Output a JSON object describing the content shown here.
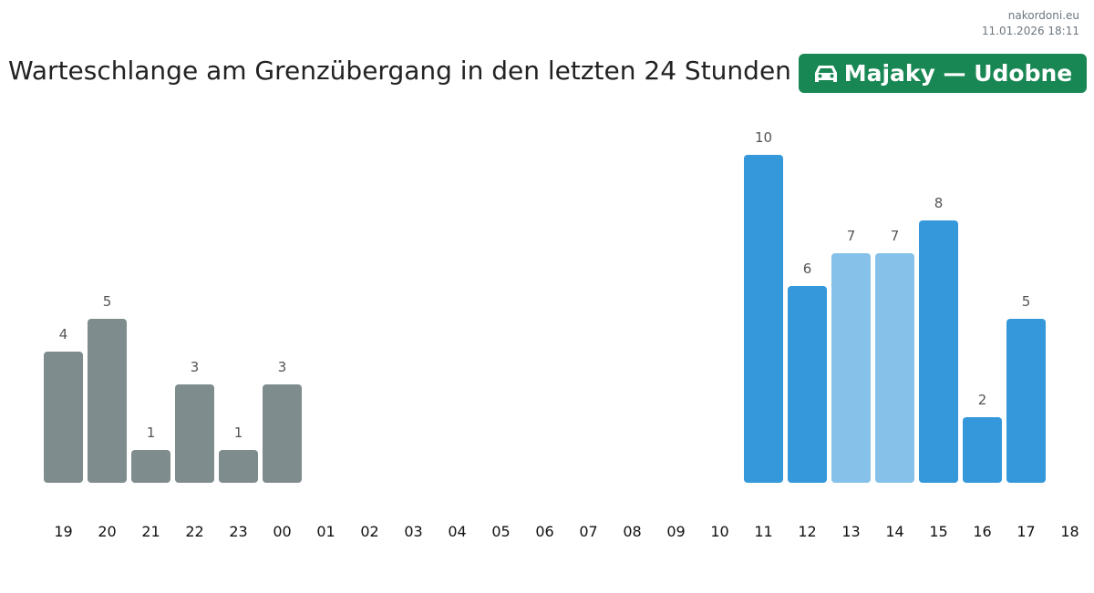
{
  "meta": {
    "site": "nakordoni.eu",
    "timestamp": "11.01.2026 18:11"
  },
  "header": {
    "title": "Warteschlange am Grenzübergang in den letzten 24 Stunden",
    "badge": "Majaky — Udobne",
    "badge_icon": "car-icon",
    "badge_color": "#198754"
  },
  "chart_data": {
    "type": "bar",
    "title": "Warteschlange am Grenzübergang in den letzten 24 Stunden",
    "xlabel": "",
    "ylabel": "",
    "ylim": [
      0,
      10
    ],
    "grid": false,
    "categories": [
      "19",
      "20",
      "21",
      "22",
      "23",
      "00",
      "01",
      "02",
      "03",
      "04",
      "05",
      "06",
      "07",
      "08",
      "09",
      "10",
      "11",
      "12",
      "13",
      "14",
      "15",
      "16",
      "17",
      "18"
    ],
    "values": [
      4,
      5,
      1,
      3,
      1,
      3,
      null,
      null,
      null,
      null,
      null,
      null,
      null,
      null,
      null,
      null,
      10,
      6,
      7,
      7,
      8,
      2,
      5,
      null
    ],
    "colors": [
      "gray",
      "gray",
      "gray",
      "gray",
      "gray",
      "gray",
      null,
      null,
      null,
      null,
      null,
      null,
      null,
      null,
      null,
      null,
      "blue",
      "blue",
      "light",
      "light",
      "blue",
      "blue",
      "blue",
      null
    ],
    "palette": {
      "gray": "#7f8c8d",
      "blue": "#3498db",
      "light": "#85c1e9"
    }
  }
}
